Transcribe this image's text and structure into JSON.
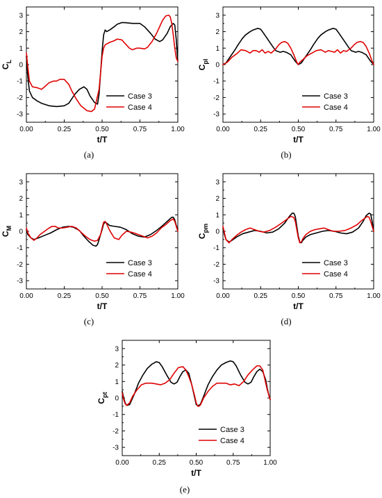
{
  "colors": {
    "case3": "#000000",
    "case4": "#e00000"
  },
  "chart_data": [
    {
      "type": "line",
      "panel_label": "(a)",
      "ylabel": {
        "main": "C",
        "sub": "L"
      },
      "xlabel": "t/T",
      "xlim": [
        0,
        1
      ],
      "ylim": [
        -3.5,
        3.5
      ],
      "xticks": [
        "0.00",
        "0.25",
        "0.50",
        "0.75",
        "1.00"
      ],
      "yticks": [
        "3",
        "2",
        "1",
        "0",
        "-1",
        "-2",
        "-3"
      ],
      "legend_position": "bottom-right",
      "series": [
        {
          "name": "Case 3",
          "color": "#000000",
          "x": [
            0.0,
            0.01,
            0.02,
            0.04,
            0.07,
            0.1,
            0.15,
            0.2,
            0.25,
            0.28,
            0.32,
            0.35,
            0.38,
            0.4,
            0.42,
            0.45,
            0.47,
            0.48,
            0.49,
            0.5,
            0.51,
            0.52,
            0.53,
            0.55,
            0.58,
            0.6,
            0.63,
            0.65,
            0.7,
            0.75,
            0.78,
            0.82,
            0.85,
            0.88,
            0.9,
            0.93,
            0.95,
            0.97,
            0.98,
            0.99,
            1.0
          ],
          "y": [
            0.5,
            -0.8,
            -1.6,
            -2.0,
            -2.2,
            -2.35,
            -2.5,
            -2.55,
            -2.5,
            -2.35,
            -1.8,
            -1.5,
            -1.35,
            -1.5,
            -1.9,
            -2.3,
            -2.4,
            -1.8,
            -0.5,
            0.8,
            1.8,
            2.1,
            2.0,
            2.1,
            2.3,
            2.45,
            2.55,
            2.55,
            2.5,
            2.5,
            2.3,
            1.9,
            1.55,
            1.4,
            1.5,
            1.9,
            2.3,
            2.5,
            2.4,
            1.5,
            0.2
          ]
        },
        {
          "name": "Case 4",
          "color": "#e00000",
          "x": [
            0.0,
            0.01,
            0.02,
            0.04,
            0.07,
            0.1,
            0.12,
            0.15,
            0.18,
            0.2,
            0.22,
            0.25,
            0.28,
            0.3,
            0.33,
            0.36,
            0.4,
            0.43,
            0.45,
            0.46,
            0.48,
            0.49,
            0.5,
            0.51,
            0.52,
            0.55,
            0.58,
            0.6,
            0.63,
            0.65,
            0.68,
            0.7,
            0.73,
            0.75,
            0.78,
            0.8,
            0.83,
            0.86,
            0.88,
            0.9,
            0.92,
            0.94,
            0.95,
            0.96,
            0.97,
            0.98,
            0.99,
            1.0
          ],
          "y": [
            0.7,
            -0.2,
            -1.0,
            -1.35,
            -1.4,
            -1.5,
            -1.35,
            -1.1,
            -1.0,
            -1.0,
            -0.9,
            -0.9,
            -1.2,
            -1.6,
            -2.1,
            -2.5,
            -2.8,
            -2.85,
            -2.7,
            -2.3,
            -1.5,
            -0.5,
            0.5,
            1.0,
            1.2,
            1.35,
            1.45,
            1.55,
            1.5,
            1.3,
            1.0,
            0.9,
            1.0,
            1.0,
            0.95,
            1.05,
            1.4,
            1.9,
            2.3,
            2.7,
            2.95,
            3.0,
            2.9,
            2.5,
            1.8,
            1.0,
            0.4,
            0.2
          ]
        }
      ]
    },
    {
      "type": "line",
      "panel_label": "(b)",
      "ylabel": {
        "main": "C",
        "sub": "pl"
      },
      "xlabel": "t/T",
      "xlim": [
        0,
        1
      ],
      "ylim": [
        -3.5,
        3.5
      ],
      "xticks": [
        "0.00",
        "0.25",
        "0.50",
        "0.75",
        "1.00"
      ],
      "yticks": [
        "3",
        "2",
        "1",
        "0",
        "-1",
        "-2",
        "-3"
      ],
      "legend_position": "bottom-right",
      "series": [
        {
          "name": "Case 3",
          "color": "#000000",
          "x": [
            0.0,
            0.02,
            0.05,
            0.08,
            0.1,
            0.13,
            0.15,
            0.18,
            0.2,
            0.23,
            0.25,
            0.27,
            0.3,
            0.33,
            0.35,
            0.38,
            0.4,
            0.42,
            0.45,
            0.48,
            0.5,
            0.52,
            0.55,
            0.58,
            0.6,
            0.63,
            0.65,
            0.68,
            0.7,
            0.73,
            0.75,
            0.77,
            0.8,
            0.83,
            0.85,
            0.88,
            0.9,
            0.92,
            0.95,
            0.98,
            1.0
          ],
          "y": [
            0.0,
            0.1,
            0.5,
            0.9,
            1.2,
            1.6,
            1.8,
            2.0,
            2.1,
            2.2,
            2.15,
            1.9,
            1.5,
            1.1,
            0.85,
            0.75,
            0.8,
            0.75,
            0.6,
            0.2,
            0.0,
            0.1,
            0.5,
            0.9,
            1.2,
            1.6,
            1.8,
            2.0,
            2.1,
            2.2,
            2.15,
            1.9,
            1.5,
            1.1,
            0.85,
            0.75,
            0.8,
            0.75,
            0.6,
            0.2,
            0.0
          ]
        },
        {
          "name": "Case 4",
          "color": "#e00000",
          "x": [
            0.0,
            0.03,
            0.06,
            0.09,
            0.12,
            0.15,
            0.18,
            0.2,
            0.22,
            0.24,
            0.26,
            0.28,
            0.3,
            0.32,
            0.35,
            0.37,
            0.39,
            0.41,
            0.43,
            0.45,
            0.47,
            0.49,
            0.5,
            0.51,
            0.53,
            0.56,
            0.59,
            0.62,
            0.65,
            0.68,
            0.7,
            0.72,
            0.74,
            0.76,
            0.78,
            0.8,
            0.82,
            0.85,
            0.87,
            0.89,
            0.91,
            0.93,
            0.95,
            0.97,
            0.99,
            1.0
          ],
          "y": [
            0.0,
            0.15,
            0.45,
            0.65,
            0.9,
            0.85,
            0.7,
            0.85,
            0.85,
            0.75,
            0.9,
            0.7,
            0.8,
            0.7,
            0.95,
            1.2,
            1.35,
            1.4,
            1.3,
            1.0,
            0.6,
            0.15,
            0.0,
            0.15,
            0.3,
            0.55,
            0.7,
            0.85,
            0.9,
            0.75,
            0.85,
            0.8,
            0.75,
            0.9,
            0.7,
            0.85,
            0.8,
            1.0,
            1.2,
            1.35,
            1.4,
            1.35,
            1.1,
            0.7,
            0.2,
            0.0
          ]
        }
      ]
    },
    {
      "type": "line",
      "panel_label": "(c)",
      "ylabel": {
        "main": "C",
        "sub": "M"
      },
      "xlabel": "t/T",
      "xlim": [
        0,
        1
      ],
      "ylim": [
        -3.5,
        3.5
      ],
      "xticks": [
        "0.00",
        "0.25",
        "0.50",
        "0.75",
        "1.00"
      ],
      "yticks": [
        "3",
        "2",
        "1",
        "0",
        "-1",
        "-2",
        "-3"
      ],
      "legend_position": "bottom-right",
      "series": [
        {
          "name": "Case 3",
          "color": "#000000",
          "x": [
            0.0,
            0.01,
            0.03,
            0.05,
            0.08,
            0.12,
            0.16,
            0.2,
            0.24,
            0.28,
            0.31,
            0.35,
            0.38,
            0.41,
            0.44,
            0.46,
            0.47,
            0.48,
            0.5,
            0.51,
            0.52,
            0.53,
            0.55,
            0.58,
            0.62,
            0.66,
            0.7,
            0.74,
            0.78,
            0.82,
            0.86,
            0.9,
            0.93,
            0.96,
            0.97,
            0.98,
            0.99,
            1.0
          ],
          "y": [
            0.1,
            -0.2,
            -0.4,
            -0.5,
            -0.4,
            -0.25,
            -0.1,
            0.1,
            0.25,
            0.3,
            0.25,
            0.05,
            -0.3,
            -0.6,
            -0.85,
            -0.9,
            -0.8,
            -0.5,
            0.1,
            0.45,
            0.55,
            0.5,
            0.35,
            0.3,
            0.25,
            0.1,
            -0.15,
            -0.3,
            -0.35,
            -0.2,
            0.05,
            0.35,
            0.6,
            0.85,
            0.85,
            0.7,
            0.35,
            0.1
          ]
        },
        {
          "name": "Case 4",
          "color": "#e00000",
          "x": [
            0.0,
            0.01,
            0.03,
            0.05,
            0.07,
            0.09,
            0.12,
            0.15,
            0.17,
            0.19,
            0.21,
            0.24,
            0.27,
            0.3,
            0.33,
            0.36,
            0.39,
            0.42,
            0.45,
            0.47,
            0.49,
            0.5,
            0.51,
            0.52,
            0.53,
            0.55,
            0.58,
            0.61,
            0.63,
            0.66,
            0.69,
            0.71,
            0.74,
            0.77,
            0.8,
            0.83,
            0.86,
            0.89,
            0.92,
            0.95,
            0.97,
            0.98,
            0.99,
            1.0
          ],
          "y": [
            0.2,
            -0.1,
            -0.4,
            -0.55,
            -0.4,
            -0.2,
            0.0,
            0.2,
            0.3,
            0.3,
            0.2,
            0.2,
            0.25,
            0.3,
            0.2,
            -0.05,
            -0.3,
            -0.5,
            -0.6,
            -0.55,
            -0.2,
            0.2,
            0.55,
            0.6,
            0.45,
            0.05,
            -0.4,
            -0.5,
            -0.25,
            0.0,
            -0.05,
            -0.1,
            -0.2,
            -0.3,
            -0.4,
            -0.3,
            -0.1,
            0.2,
            0.4,
            0.65,
            0.75,
            0.6,
            0.3,
            0.0
          ]
        }
      ]
    },
    {
      "type": "line",
      "panel_label": "(d)",
      "ylabel": {
        "main": "C",
        "sub": "pm"
      },
      "xlabel": "t/T",
      "xlim": [
        0,
        1
      ],
      "ylim": [
        -3.5,
        3.5
      ],
      "xticks": [
        "0.00",
        "0.25",
        "0.50",
        "0.75",
        "1.00"
      ],
      "yticks": [
        "3",
        "2",
        "1",
        "0",
        "-1",
        "-2",
        "-3"
      ],
      "legend_position": "bottom-right",
      "series": [
        {
          "name": "Case 3",
          "color": "#000000",
          "x": [
            0.0,
            0.01,
            0.02,
            0.04,
            0.06,
            0.09,
            0.13,
            0.17,
            0.21,
            0.25,
            0.29,
            0.33,
            0.37,
            0.41,
            0.44,
            0.46,
            0.47,
            0.48,
            0.49,
            0.5,
            0.51,
            0.52,
            0.53,
            0.55,
            0.58,
            0.62,
            0.66,
            0.7,
            0.74,
            0.78,
            0.82,
            0.86,
            0.9,
            0.93,
            0.95,
            0.97,
            0.98,
            0.99,
            1.0
          ],
          "y": [
            0.2,
            -0.2,
            -0.5,
            -0.65,
            -0.55,
            -0.35,
            -0.15,
            -0.05,
            0.05,
            0.0,
            -0.1,
            -0.05,
            0.15,
            0.5,
            0.9,
            1.1,
            1.1,
            0.9,
            0.3,
            -0.3,
            -0.65,
            -0.7,
            -0.55,
            -0.35,
            -0.2,
            -0.1,
            0.0,
            0.05,
            0.0,
            -0.1,
            -0.15,
            -0.05,
            0.2,
            0.6,
            0.95,
            1.1,
            1.05,
            0.6,
            0.0
          ]
        },
        {
          "name": "Case 4",
          "color": "#e00000",
          "x": [
            0.0,
            0.01,
            0.02,
            0.04,
            0.06,
            0.09,
            0.12,
            0.15,
            0.18,
            0.21,
            0.24,
            0.27,
            0.31,
            0.35,
            0.39,
            0.42,
            0.45,
            0.47,
            0.48,
            0.49,
            0.5,
            0.51,
            0.52,
            0.53,
            0.55,
            0.58,
            0.61,
            0.64,
            0.67,
            0.7,
            0.73,
            0.77,
            0.81,
            0.85,
            0.89,
            0.92,
            0.95,
            0.96,
            0.97,
            0.98,
            0.99,
            1.0
          ],
          "y": [
            0.3,
            -0.1,
            -0.5,
            -0.7,
            -0.5,
            -0.25,
            -0.05,
            0.1,
            0.2,
            0.1,
            0.0,
            -0.05,
            0.05,
            0.25,
            0.5,
            0.7,
            0.9,
            0.85,
            0.6,
            0.1,
            -0.4,
            -0.7,
            -0.65,
            -0.45,
            -0.2,
            0.0,
            0.1,
            0.15,
            0.2,
            0.1,
            0.0,
            0.0,
            0.05,
            0.2,
            0.4,
            0.65,
            0.85,
            0.9,
            0.85,
            0.6,
            0.3,
            0.0
          ]
        }
      ]
    },
    {
      "type": "line",
      "panel_label": "(e)",
      "ylabel": {
        "main": "C",
        "sub": "pt"
      },
      "xlabel": "t/T",
      "xlim": [
        0,
        1
      ],
      "ylim": [
        -3.5,
        3.5
      ],
      "xticks": [
        "0.00",
        "0.25",
        "0.50",
        "0.75",
        "1.00"
      ],
      "yticks": [
        "3",
        "2",
        "1",
        "0",
        "-1",
        "-2",
        "-3"
      ],
      "legend_position": "bottom-right",
      "series": [
        {
          "name": "Case 3",
          "color": "#000000",
          "x": [
            0.0,
            0.01,
            0.02,
            0.03,
            0.05,
            0.08,
            0.11,
            0.14,
            0.17,
            0.2,
            0.23,
            0.25,
            0.27,
            0.3,
            0.33,
            0.35,
            0.37,
            0.39,
            0.41,
            0.43,
            0.45,
            0.47,
            0.49,
            0.5,
            0.51,
            0.52,
            0.53,
            0.55,
            0.58,
            0.61,
            0.64,
            0.67,
            0.7,
            0.73,
            0.75,
            0.77,
            0.8,
            0.83,
            0.85,
            0.87,
            0.89,
            0.91,
            0.93,
            0.95,
            0.97,
            0.98,
            0.99,
            1.0
          ],
          "y": [
            0.4,
            0.0,
            -0.3,
            -0.45,
            -0.4,
            0.2,
            0.9,
            1.4,
            1.8,
            2.05,
            2.2,
            2.15,
            1.9,
            1.4,
            0.95,
            0.85,
            0.95,
            1.3,
            1.6,
            1.7,
            1.5,
            0.8,
            0.0,
            -0.4,
            -0.45,
            -0.45,
            -0.35,
            0.1,
            0.8,
            1.3,
            1.7,
            2.0,
            2.15,
            2.25,
            2.2,
            1.95,
            1.4,
            0.95,
            0.85,
            0.95,
            1.3,
            1.6,
            1.75,
            1.6,
            1.1,
            0.6,
            0.2,
            -0.1
          ]
        },
        {
          "name": "Case 4",
          "color": "#e00000",
          "x": [
            0.0,
            0.01,
            0.02,
            0.03,
            0.05,
            0.07,
            0.1,
            0.13,
            0.16,
            0.2,
            0.23,
            0.26,
            0.29,
            0.32,
            0.35,
            0.38,
            0.41,
            0.43,
            0.45,
            0.47,
            0.49,
            0.5,
            0.51,
            0.52,
            0.53,
            0.55,
            0.58,
            0.61,
            0.64,
            0.67,
            0.7,
            0.73,
            0.76,
            0.79,
            0.82,
            0.85,
            0.88,
            0.91,
            0.93,
            0.95,
            0.96,
            0.97,
            0.98,
            0.99,
            1.0
          ],
          "y": [
            0.3,
            -0.1,
            -0.35,
            -0.45,
            -0.3,
            0.1,
            0.5,
            0.8,
            0.9,
            0.9,
            0.85,
            0.8,
            0.9,
            1.1,
            1.5,
            1.85,
            1.9,
            1.7,
            1.3,
            0.8,
            0.1,
            -0.3,
            -0.5,
            -0.5,
            -0.4,
            0.0,
            0.4,
            0.7,
            0.9,
            0.9,
            0.9,
            0.8,
            0.85,
            0.75,
            1.0,
            1.4,
            1.7,
            1.95,
            1.95,
            1.7,
            1.3,
            0.9,
            0.5,
            0.2,
            -0.1
          ]
        }
      ]
    }
  ]
}
